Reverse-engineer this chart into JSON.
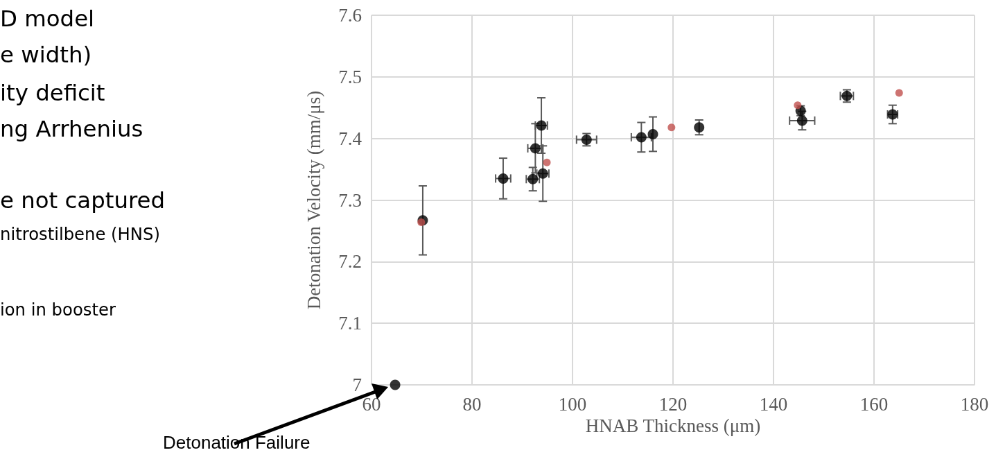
{
  "chart_data": {
    "type": "scatter",
    "xlabel": "HNAB Thickness (μm)",
    "ylabel": "Detonation Velocity (mm/μs)",
    "xlim": [
      60,
      180
    ],
    "xticks": [
      60,
      80,
      100,
      120,
      140,
      160,
      180
    ],
    "ylim": [
      7,
      7.6
    ],
    "yticks": [
      7,
      7.1,
      7.2,
      7.3,
      7.4,
      7.5,
      7.6
    ],
    "grid": true,
    "marker": "circle",
    "annotations": [
      "D model",
      "e width)",
      "ity deficit",
      "ng Arrhenius",
      "e not captured",
      "nitrostilbene (HNS)",
      "ion in booster",
      "Detonation Failure"
    ],
    "series": [
      {
        "color": "#000000",
        "x": [
          70.2,
          86.2,
          92.1,
          94.1,
          92.6,
          93.8,
          102.8,
          113.7,
          116,
          125.2,
          145.4,
          145.7,
          154.6,
          163.7,
          64.7
        ],
        "values": [
          7.267,
          7.335,
          7.334,
          7.343,
          7.384,
          7.421,
          7.398,
          7.402,
          7.407,
          7.418,
          7.445,
          7.429,
          7.469,
          7.439,
          7.0
        ],
        "errors": [
          0.056,
          0.033,
          0.019,
          0.045,
          0.04,
          0.045,
          0.01,
          0.024,
          0.028,
          0.012,
          0.008,
          0.015,
          0.01,
          0.015,
          null
        ],
        "xerrors": [
          null,
          1.5,
          1.3,
          1.2,
          1.5,
          1.2,
          2,
          2,
          null,
          null,
          null,
          2.5,
          1.3,
          1,
          null
        ]
      },
      {
        "color": "#c0504d",
        "x": [
          69.9,
          94.9,
          119.7,
          144.8,
          165
        ],
        "values": [
          7.264,
          7.361,
          7.418,
          7.454,
          7.474
        ]
      }
    ]
  }
}
